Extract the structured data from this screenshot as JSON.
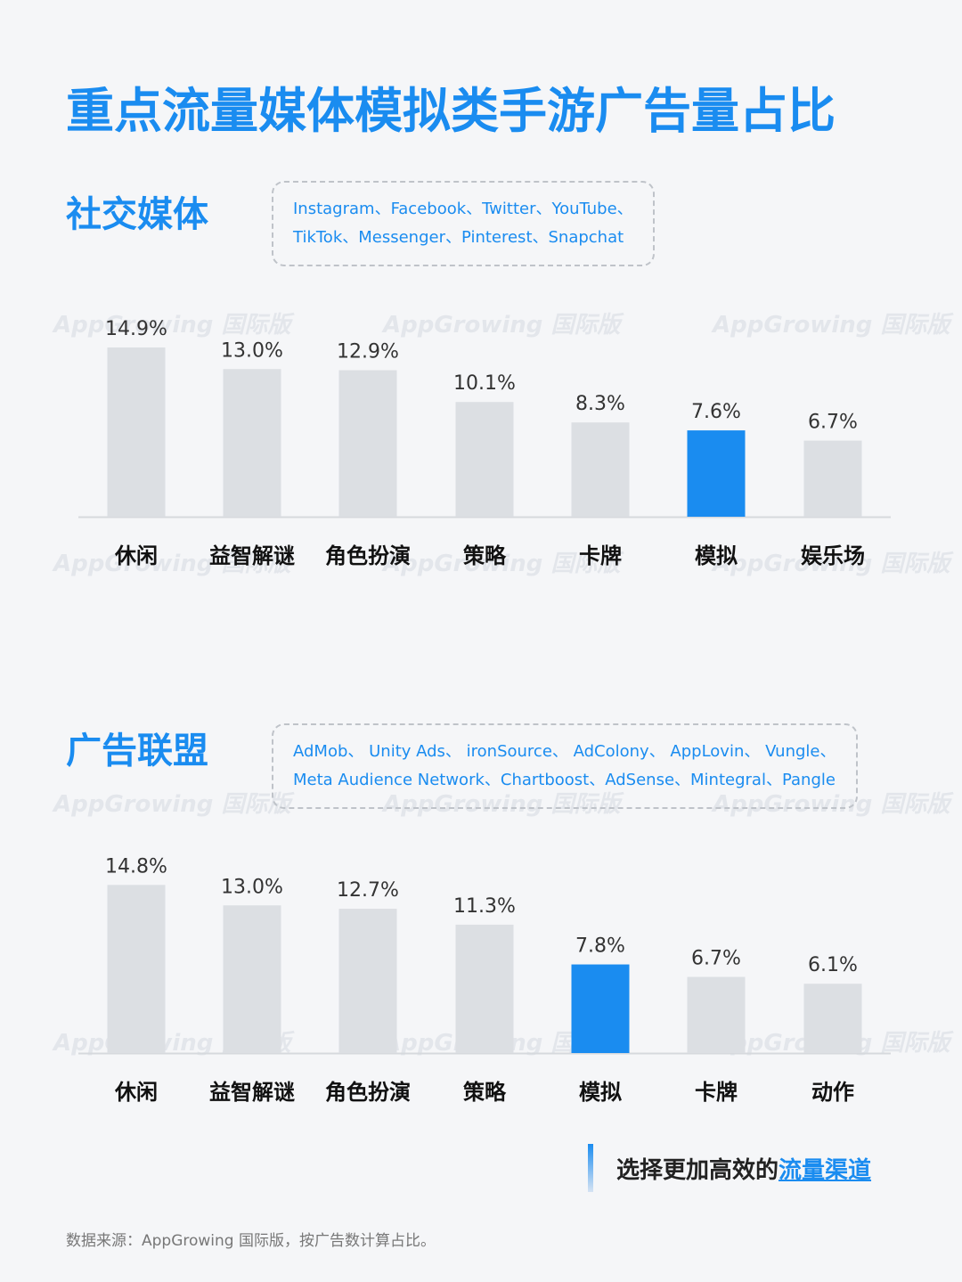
{
  "title": "重点流量媒体模拟类手游广告量占比",
  "watermark": "AppGrowing 国际版",
  "colors": {
    "accent": "#1a8cf0",
    "bar_default": "#dcdfe3",
    "bar_highlight": "#1a8cf0"
  },
  "chart_data": [
    {
      "type": "bar",
      "section_title": "社交媒体",
      "platforms": [
        "Instagram、Facebook、Twitter、YouTube、",
        "TikTok、Messenger、Pinterest、Snapchat"
      ],
      "categories": [
        "休闲",
        "益智解谜",
        "角色扮演",
        "策略",
        "卡牌",
        "模拟",
        "娱乐场"
      ],
      "values": [
        14.9,
        13.0,
        12.9,
        10.1,
        8.3,
        7.6,
        6.7
      ],
      "value_labels": [
        "14.9%",
        "13.0%",
        "12.9%",
        "10.1%",
        "8.3%",
        "7.6%",
        "6.7%"
      ],
      "highlight": "模拟",
      "ylim": [
        0,
        15
      ]
    },
    {
      "type": "bar",
      "section_title": "广告联盟",
      "platforms": [
        "AdMob、 Unity  Ads、 ironSource、 AdColony、 AppLovin、 Vungle、",
        "Meta Audience Network、Chartboost、AdSense、Mintegral、Pangle"
      ],
      "categories": [
        "休闲",
        "益智解谜",
        "角色扮演",
        "策略",
        "模拟",
        "卡牌",
        "动作"
      ],
      "values": [
        14.8,
        13.0,
        12.7,
        11.3,
        7.8,
        6.7,
        6.1
      ],
      "value_labels": [
        "14.8%",
        "13.0%",
        "12.7%",
        "11.3%",
        "7.8%",
        "6.7%",
        "6.1%"
      ],
      "highlight": "模拟",
      "ylim": [
        0,
        15
      ]
    }
  ],
  "cta": {
    "text": "选择更加高效的",
    "link": "流量渠道"
  },
  "source_note": "数据来源：AppGrowing 国际版，按广告数计算占比。"
}
